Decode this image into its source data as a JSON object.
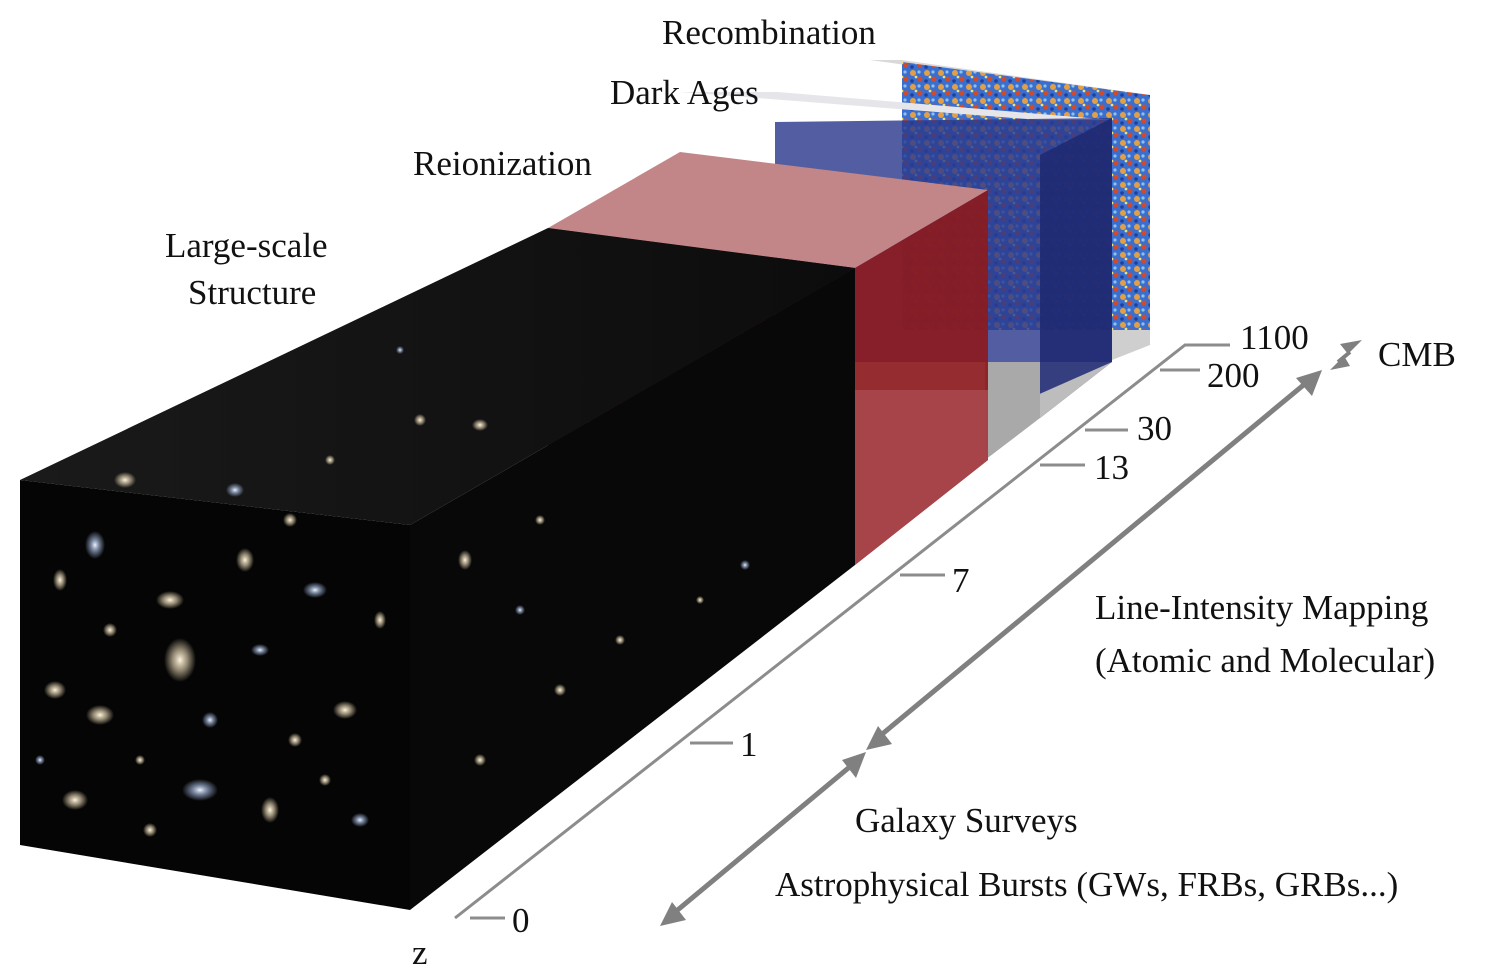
{
  "epochs": [
    {
      "key": "recombination",
      "label": "Recombination"
    },
    {
      "key": "dark_ages",
      "label": "Dark Ages"
    },
    {
      "key": "reionization",
      "label": "Reionization"
    },
    {
      "key": "large_scale_structure",
      "label_line1": "Large-scale",
      "label_line2": "Structure"
    }
  ],
  "axis": {
    "name": "z",
    "ticks": [
      "0",
      "1",
      "7",
      "13",
      "30",
      "200",
      "1100"
    ]
  },
  "probes": {
    "cmb": "CMB",
    "lim_line1": "Line-Intensity Mapping",
    "lim_line2": "(Atomic and Molecular)",
    "galaxy_surveys": "Galaxy Surveys",
    "bursts": "Astrophysical Bursts (GWs, FRBs, GRBs...)"
  },
  "colors": {
    "lss_box": "#050505",
    "reionization": "#8b1a1e",
    "dark_ages": "#2c3a8c",
    "cmb_red": "#d8532b",
    "cmb_blue": "#2f5fc8",
    "axis": "#8c8c8c",
    "arrow": "#808080"
  }
}
